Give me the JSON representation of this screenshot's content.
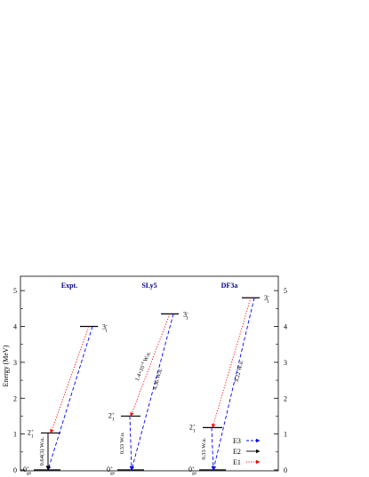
{
  "axis": {
    "label": "Energy (MeV)",
    "ticks": [
      "0",
      "1",
      "2",
      "3",
      "4",
      "5"
    ],
    "range": [
      0,
      5.4
    ]
  },
  "colors": {
    "e1": "#ff0000",
    "e2": "#000000",
    "e3": "#0000ff",
    "title": "#00008b"
  },
  "panels": [
    {
      "title": "Expt.",
      "levels": [
        {
          "label": "0",
          "sup": "+",
          "sub": "gs",
          "energy": 0
        },
        {
          "label": "2",
          "sup": "+",
          "sub": "1",
          "energy": 1.03
        },
        {
          "label": "3",
          "sup": "-",
          "sub": "1",
          "energy": 4.0
        }
      ],
      "transitions": {
        "e2_label": "0.64(3) W.u.",
        "e3_label": "",
        "e1_label": ""
      }
    },
    {
      "title": "SLy5",
      "levels": [
        {
          "label": "0",
          "sup": "+",
          "sub": "gs",
          "energy": 0
        },
        {
          "label": "2",
          "sup": "+",
          "sub": "1",
          "energy": 1.5
        },
        {
          "label": "3",
          "sup": "-",
          "sub": "1",
          "energy": 4.35
        }
      ],
      "transitions": {
        "e2_label": "0.33 W.u.",
        "e3_label": "4.36 W.u.",
        "e1_label": "1.4×10",
        "e1_exp": "-4",
        "e1_unit": " W.u."
      }
    },
    {
      "title": "DF3a",
      "levels": [
        {
          "label": "0",
          "sup": "+",
          "sub": "gs",
          "energy": 0
        },
        {
          "label": "2",
          "sup": "+",
          "sub": "1",
          "energy": 1.18
        },
        {
          "label": "3",
          "sup": "-",
          "sub": "1",
          "energy": 4.8
        }
      ],
      "transitions": {
        "e2_label": "0.33 W.u.",
        "e3_label": "9.22 W.u.",
        "e1_label": ""
      }
    }
  ],
  "legend": [
    {
      "label": "E3",
      "type": "e3"
    },
    {
      "label": "E2",
      "type": "e2"
    },
    {
      "label": "E1",
      "type": "e1"
    }
  ]
}
